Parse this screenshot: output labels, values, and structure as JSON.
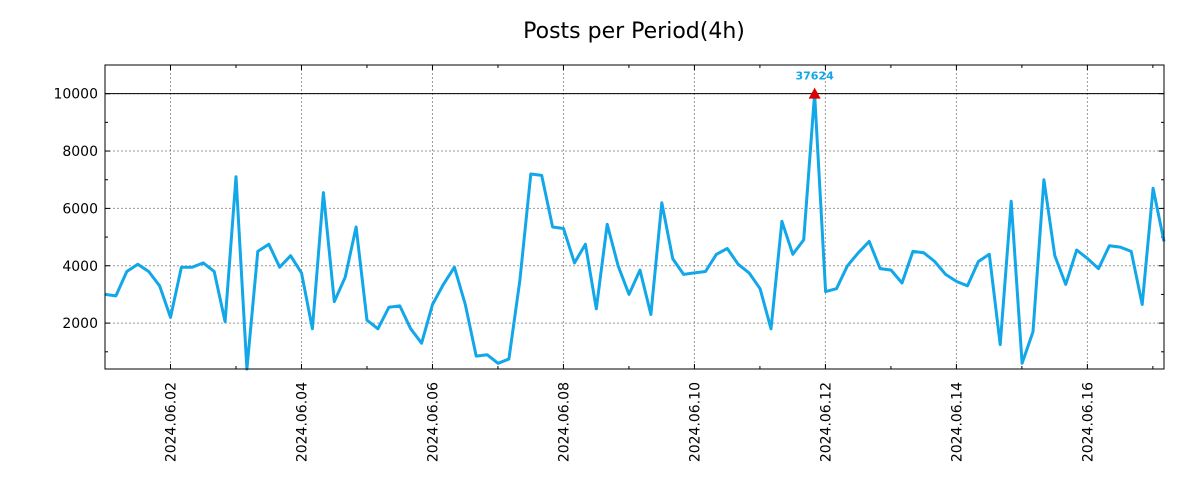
{
  "chart_data": {
    "type": "line",
    "title": "Posts per Period(4h)",
    "xlabel": "",
    "ylabel": "",
    "ylim": [
      400,
      11000
    ],
    "y_ticks": [
      2000,
      4000,
      6000,
      8000,
      10000
    ],
    "x_tick_labels": [
      "2024.06.02",
      "2024.06.04",
      "2024.06.06",
      "2024.06.08",
      "2024.06.10",
      "2024.06.12",
      "2024.06.14",
      "2024.06.16"
    ],
    "x_tick_days": [
      1,
      3,
      5,
      7,
      9,
      11,
      13,
      15
    ],
    "x_start_day": 0.0,
    "period_days": 0.1667,
    "reference_line": 10000,
    "peak": {
      "index": 65,
      "plotted_value": 10000,
      "label": "37624"
    },
    "colors": {
      "line": "#12a7e8",
      "peak_marker": "#dd0000"
    },
    "series": [
      {
        "name": "Posts",
        "values": [
          3000,
          2950,
          3800,
          4050,
          3800,
          3300,
          2200,
          3950,
          3950,
          4100,
          3800,
          2050,
          7100,
          300,
          4500,
          4750,
          3950,
          4350,
          3750,
          1800,
          6550,
          2750,
          3600,
          5350,
          2100,
          1800,
          2550,
          2600,
          1800,
          1300,
          2650,
          3350,
          3950,
          2650,
          850,
          900,
          600,
          750,
          3500,
          7200,
          7150,
          5350,
          5300,
          4100,
          4750,
          2500,
          5450,
          4000,
          3000,
          3850,
          2300,
          6200,
          4250,
          3700,
          3750,
          3800,
          4400,
          4600,
          4050,
          3750,
          3200,
          1800,
          5550,
          4400,
          4900,
          10000,
          3100,
          3200,
          4000,
          4450,
          4850,
          3900,
          3850,
          3400,
          4500,
          4450,
          4150,
          3700,
          3450,
          3300,
          4150,
          4400,
          1250,
          6250,
          600,
          1700,
          7000,
          4350,
          3350,
          4550,
          4250,
          3900,
          4700,
          4650,
          4500,
          2650,
          6700,
          4850
        ]
      }
    ]
  }
}
